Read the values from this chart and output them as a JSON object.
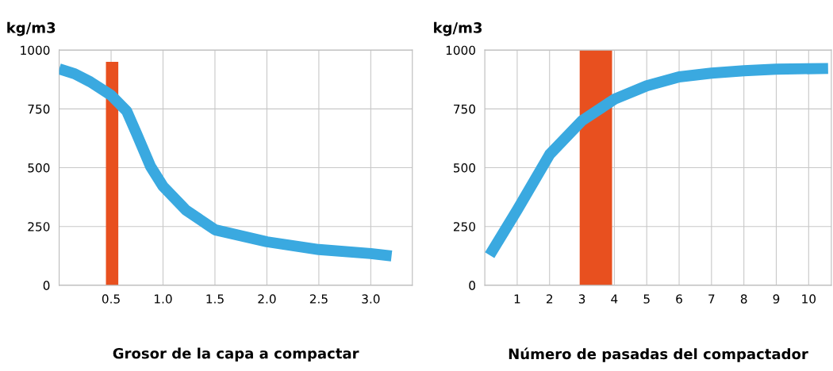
{
  "chart_data": [
    {
      "type": "line",
      "ylabel": "kg/m3",
      "xlabel": "Grosor de la capa a compactar",
      "xlim": [
        0,
        3.4
      ],
      "ylim": [
        0,
        1000
      ],
      "xticks": [
        {
          "value": 0.5,
          "label": "0.5"
        },
        {
          "value": 1.0,
          "label": "1.0"
        },
        {
          "value": 1.5,
          "label": "1.5"
        },
        {
          "value": 2.0,
          "label": "2.0"
        },
        {
          "value": 2.5,
          "label": "2.5"
        },
        {
          "value": 3.0,
          "label": "3.0"
        }
      ],
      "yticks": [
        0,
        250,
        500,
        750,
        1000
      ],
      "grid": true,
      "series": [
        {
          "type": "bar",
          "color": "#e8501f",
          "x": [
            0.51
          ],
          "values": [
            950
          ]
        },
        {
          "color": "#3aa9e0",
          "x": [
            0,
            0.15,
            0.3,
            0.5,
            0.65,
            0.75,
            0.88,
            1.0,
            1.22,
            1.5,
            2.0,
            2.5,
            3.0,
            3.2
          ],
          "values": [
            920,
            899,
            865,
            808,
            741,
            640,
            505,
            421,
            320,
            236,
            185,
            152,
            135,
            125
          ]
        }
      ]
    },
    {
      "type": "line",
      "ylabel": "kg/m3",
      "xlabel": "Número de pasadas del compactador",
      "xlim": [
        0,
        10.7
      ],
      "ylim": [
        0,
        1000
      ],
      "xticks": [
        1,
        2,
        3,
        4,
        5,
        6,
        7,
        8,
        9,
        10
      ],
      "yticks": [
        0,
        250,
        500,
        750,
        1000
      ],
      "grid": true,
      "bands": [
        {
          "axis": "x",
          "from": 2.93,
          "to": 3.93,
          "color": "#e8501f"
        }
      ],
      "series": [
        {
          "color": "#3aa9e0",
          "x": [
            0.15,
            1,
            2,
            3,
            4,
            5,
            6,
            7,
            8,
            9,
            10.6
          ],
          "values": [
            128,
            320,
            556,
            700,
            791,
            848,
            886,
            902,
            912,
            919,
            922
          ]
        }
      ]
    }
  ]
}
